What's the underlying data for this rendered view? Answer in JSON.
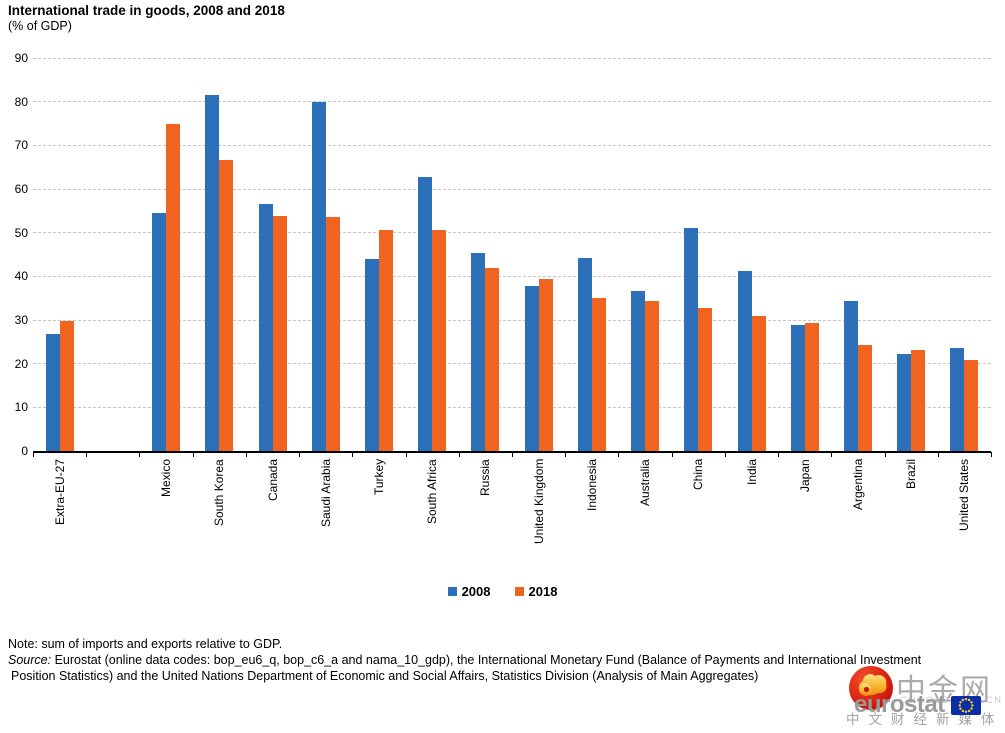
{
  "title": "International trade in goods, 2008 and 2018",
  "subtitle": "(% of GDP)",
  "legend": {
    "label_2008": "2008",
    "label_2018": "2018"
  },
  "colors": {
    "bar_2008": "#2B70B8",
    "bar_2018": "#F0641F",
    "gridline": "#C6C6C6",
    "axis": "#000000",
    "watermark_gray": "#9A9A9A",
    "eu_flag_blue": "#0B2EA8",
    "eu_star_yellow": "#FFD617",
    "cngold_red": "#D31A10",
    "cngold_gold": "#F5A623"
  },
  "chart_data": {
    "type": "bar",
    "title": "International trade in goods, 2008 and 2018",
    "subtitle": "(% of GDP)",
    "categories": [
      "Extra-EU-27",
      "",
      "Mexico",
      "South Korea",
      "Canada",
      "Saudi Arabia",
      "Turkey",
      "South Africa",
      "Russia",
      "United Kingdom",
      "Indonesia",
      "Australia",
      "China",
      "India",
      "Japan",
      "Argentina",
      "Brazil",
      "United States"
    ],
    "series": [
      {
        "name": "2008",
        "color": "#2B70B8",
        "values": [
          26.9,
          null,
          54.4,
          81.5,
          56.6,
          79.9,
          43.9,
          62.8,
          45.3,
          37.7,
          44.3,
          36.6,
          51.0,
          41.3,
          28.8,
          34.3,
          22.3,
          23.5
        ]
      },
      {
        "name": "2018",
        "color": "#F0641F",
        "values": [
          29.7,
          null,
          74.9,
          66.6,
          53.9,
          53.7,
          50.6,
          50.6,
          41.9,
          39.4,
          35.1,
          34.4,
          32.7,
          30.9,
          29.4,
          24.2,
          23.1,
          20.8
        ]
      }
    ],
    "ylabel": "",
    "xlabel": "",
    "ylim": [
      0,
      90
    ],
    "ytick_step": 10,
    "grid": "horizontal-dashed",
    "legend_position": "bottom",
    "note": "empty category slot between Extra-EU-27 and Mexico"
  },
  "footer": {
    "note": "Note: sum of imports and exports relative to GDP.",
    "source_label": "Source:",
    "source_line1": "Eurostat (online data codes: bop_eu6_q, bop_c6_a and nama_10_gdp), the International Monetary Fund (Balance of Payments and International Investment",
    "source_line2": "Position Statistics) and the United Nations Department of Economic and Social Affairs, Statistics Division (Analysis of Main Aggregates)"
  },
  "watermark": {
    "cn_title": "中金网",
    "domain": "CNGOLD.COM.CN",
    "slogan": "中文财经新媒体",
    "eurostat": "eurostat"
  }
}
